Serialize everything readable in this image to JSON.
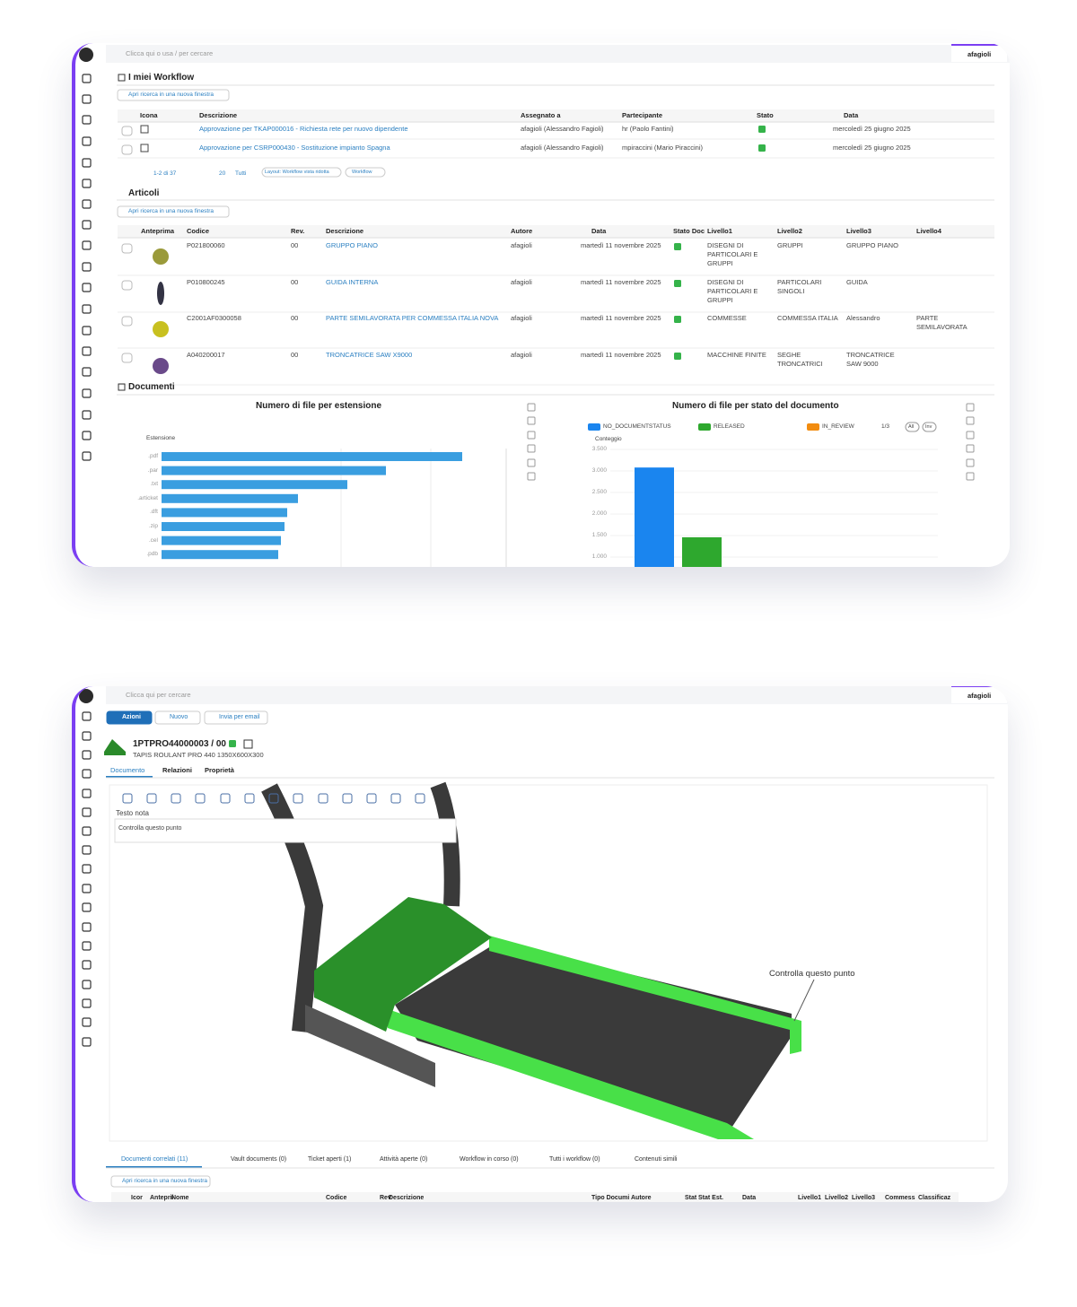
{
  "workflow_page": {
    "search_placeholder": "Clicca qui o usa / per cercare",
    "user": "afagioli",
    "workflow": {
      "title": "I miei Workflow",
      "open_button": "Apri ricerca in una nuova finestra",
      "columns": [
        "Icona",
        "Descrizione",
        "Assegnato a",
        "Partecipante",
        "Stato",
        "Data"
      ],
      "rows": [
        [
          "Approvazione per TKAP000016 - Richiesta rete per nuovo dipendente",
          "afagioli (Alessandro Fagioli)",
          "hr (Paolo Fantini)",
          "mercoledì 25 giugno 2025"
        ],
        [
          "Approvazione per CSRP000430 - Sostituzione impianto Spagna",
          "afagioli (Alessandro Fagioli)",
          "mpiraccini (Mario Piraccini)",
          "mercoledì 25 giugno 2025"
        ]
      ],
      "pagination": {
        "range": "1-2 di 37",
        "page_size": 20,
        "all": "Tutti"
      },
      "chips": [
        "Layout: Workflow vista ridotta",
        "Workflow"
      ]
    },
    "articoli": {
      "title": "Articoli",
      "open_button": "Apri ricerca in una nuova finestra",
      "columns": [
        "Anteprima",
        "Codice",
        "Rev.",
        "Descrizione",
        "Autore",
        "Data",
        "Stato Doc",
        "Livello1",
        "Livello2",
        "Livello3",
        "Livello4"
      ],
      "rows": [
        [
          "P021800060",
          "00",
          "GRUPPO PIANO",
          "afagioli",
          "martedì 11 novembre 2025",
          "DISEGNI DI PARTICOLARI E GRUPPI",
          "GRUPPI",
          "GRUPPO PIANO",
          null
        ],
        [
          "P010800245",
          "00",
          "GUIDA INTERNA",
          "afagioli",
          "martedì 11 novembre 2025",
          "DISEGNI DI PARTICOLARI E GRUPPI",
          "PARTICOLARI SINGOLI",
          "GUIDA",
          null
        ],
        [
          "C2001AF0300058",
          "00",
          "PARTE SEMILAVORATA PER COMMESSA ITALIA NOVA",
          "afagioli",
          "martedì 11 novembre 2025",
          "COMMESSE",
          "COMMESSA ITALIA",
          "Alessandro",
          "PARTE SEMILAVORATA"
        ],
        [
          "A040200017",
          "00",
          "TRONCATRICE SAW X9000",
          "afagioli",
          "martedì 11 novembre 2025",
          "MACCHINE FINITE",
          "SEGHE TRONCATRICI",
          "TRONCATRICE SAW 9000",
          null
        ]
      ]
    },
    "documenti": {
      "title": "Documenti"
    }
  },
  "chart_data": [
    {
      "type": "bar",
      "orientation": "horizontal",
      "title": "Numero di file per estensione",
      "y_label": "Estensione",
      "categories": [
        ".pdf",
        ".par",
        ".txt",
        ".articket",
        ".dft",
        ".zip",
        ".cel",
        ".pdb"
      ],
      "values": [
        335,
        250,
        207,
        152,
        140,
        137,
        133,
        130
      ],
      "color": "#3a9ee0"
    },
    {
      "type": "bar",
      "orientation": "vertical",
      "title": "Numero di file per stato del documento",
      "y_label": "Conteggio",
      "series": [
        {
          "name": "NO_DOCUMENTSTATUS",
          "color": "#1a85ef",
          "values": [
            3080
          ]
        },
        {
          "name": "RELEASED",
          "color": "#2ea82e",
          "values": [
            1460
          ]
        },
        {
          "name": "IN_REVIEW",
          "color": "#f28c0f",
          "values": [
            null
          ]
        }
      ],
      "ylim": [
        0,
        3500
      ],
      "yticks": [
        {
          "value": 1000,
          "label": "1.000"
        },
        {
          "value": 1500,
          "label": "1.500"
        },
        {
          "value": 2000,
          "label": "2.000"
        },
        {
          "value": 2500,
          "label": "2.500"
        },
        {
          "value": 3000,
          "label": "3.000"
        },
        {
          "value": 3500,
          "label": "3.500"
        }
      ],
      "legend_page": "1/3",
      "legend_buttons": [
        "All",
        "Inv"
      ]
    }
  ],
  "detail_page": {
    "search_placeholder": "Clicca qui per cercare",
    "user": "afagioli",
    "buttons": [
      "Azioni",
      "Nuovo",
      "Invia per email"
    ],
    "code": "1PTPRO44000003 / 00",
    "description": "TAPIS ROULANT PRO 440 1350X600X300",
    "tabs": [
      "Documento",
      "Relazioni",
      "Proprietà"
    ],
    "note_label": "Testo nota",
    "note_text": "Controlla questo punto",
    "annotation": "Controlla questo punto",
    "bottom_tabs": [
      "Documenti correlati (11)",
      "Vault documents (0)",
      "Ticket aperti (1)",
      "Attività aperte (0)",
      "Workflow in corso (0)",
      "Tutti i workflow (0)",
      "Contenuti simili"
    ],
    "open_button": "Apri ricerca in una nuova finestra",
    "columns": [
      "Icor",
      "Anteprii",
      "Nome",
      "Codice",
      "Rev",
      "Descrizione",
      "Tipo Documi",
      "Autore",
      "Stat",
      "Stat Est.",
      "Data",
      "Livello1",
      "Livello2",
      "Livello3",
      "Commess",
      "Classificaz"
    ]
  }
}
